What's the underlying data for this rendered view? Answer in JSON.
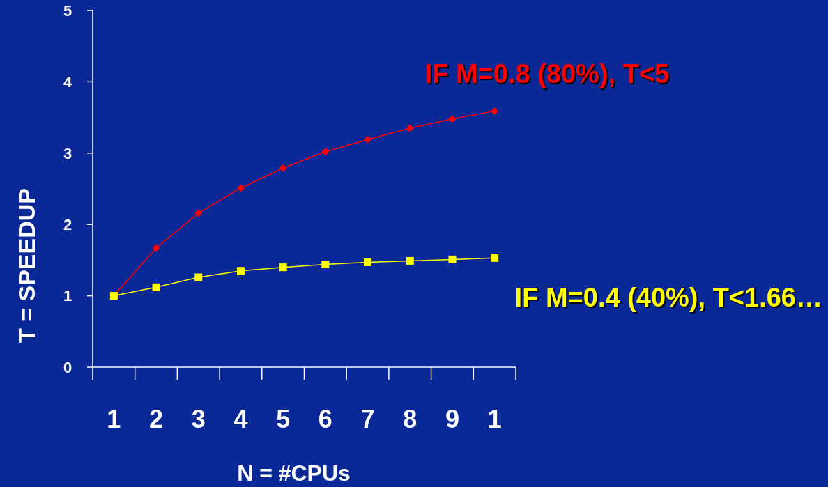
{
  "chart_data": {
    "type": "line",
    "xlabel": "N = #CPUs",
    "ylabel": "T = SPEEDUP",
    "categories": [
      "1",
      "2",
      "3",
      "4",
      "5",
      "6",
      "7",
      "8",
      "9",
      "1"
    ],
    "ylim": [
      0,
      5
    ],
    "yticks": [
      0,
      1,
      2,
      3,
      4,
      5
    ],
    "grid": false,
    "series": [
      {
        "name": "IF M=0.8 (80%), T<5",
        "color": "#ff0000",
        "marker": "diamond",
        "values": [
          1.0,
          1.67,
          2.16,
          2.51,
          2.79,
          3.02,
          3.19,
          3.35,
          3.48,
          3.59
        ]
      },
      {
        "name": "IF M=0.4 (40%), T<1.66…",
        "color": "#ffff00",
        "marker": "square",
        "values": [
          1.0,
          1.12,
          1.26,
          1.35,
          1.4,
          1.44,
          1.47,
          1.49,
          1.51,
          1.53
        ]
      }
    ]
  }
}
